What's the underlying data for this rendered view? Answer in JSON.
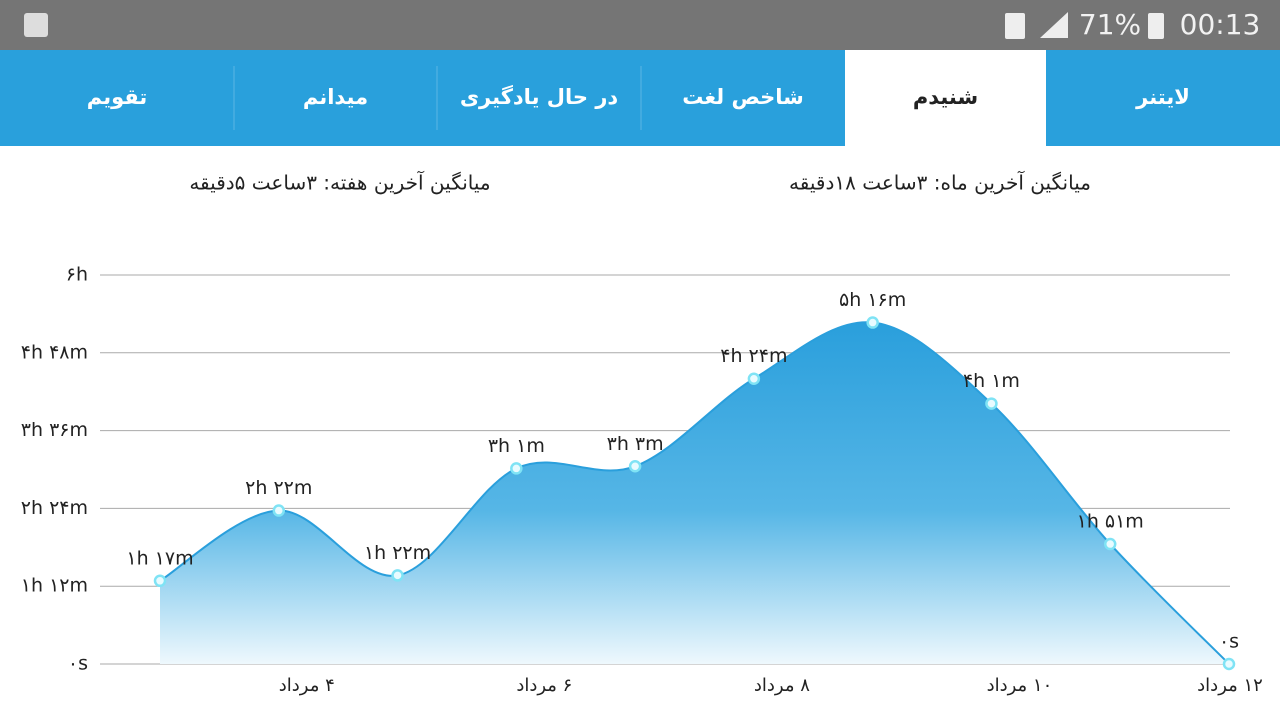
{
  "status_bar": {
    "battery": "71%",
    "time": "00:13"
  },
  "tabs": [
    "لایتنر",
    "شنیدم",
    "شاخص لغت",
    "در حال یادگیری",
    "میدانم",
    "تقویم"
  ],
  "active_tab": 1,
  "summary": {
    "month": "میانگین آخرین ماه: ۳ساعت  ۱۸دقیقه",
    "week": "میانگین آخرین هفته: ۳ساعت  ۵دقیقه"
  },
  "chart_data": {
    "type": "area",
    "color": "#2a9fdc",
    "categories": [
      null,
      "۴ مرداد",
      null,
      "۶ مرداد",
      null,
      "۸ مرداد",
      null,
      "۱۰ مرداد",
      null,
      "۱۲ مرداد"
    ],
    "values": [
      77,
      142,
      82,
      181,
      183,
      264,
      316,
      241,
      111,
      0
    ],
    "value_labels": [
      "۱h ۱۷m",
      "۲h ۲۲m",
      "۱h ۲۲m",
      "۳h ۱m",
      "۳h ۳m",
      "۴h ۲۴m",
      "۵h ۱۶m",
      "۴h ۱m",
      "۱h ۵۱m",
      "۰s"
    ],
    "ylim": [
      0,
      360
    ],
    "yticks": [
      {
        "value": 0,
        "label": "۰s"
      },
      {
        "value": 72,
        "label": "۱h ۱۲m"
      },
      {
        "value": 144,
        "label": "۲h ۲۴m"
      },
      {
        "value": 216,
        "label": "۳h ۳۶m"
      },
      {
        "value": 288,
        "label": "۴h ۴۸m"
      },
      {
        "value": 360,
        "label": "۶h"
      }
    ],
    "grid": true
  }
}
